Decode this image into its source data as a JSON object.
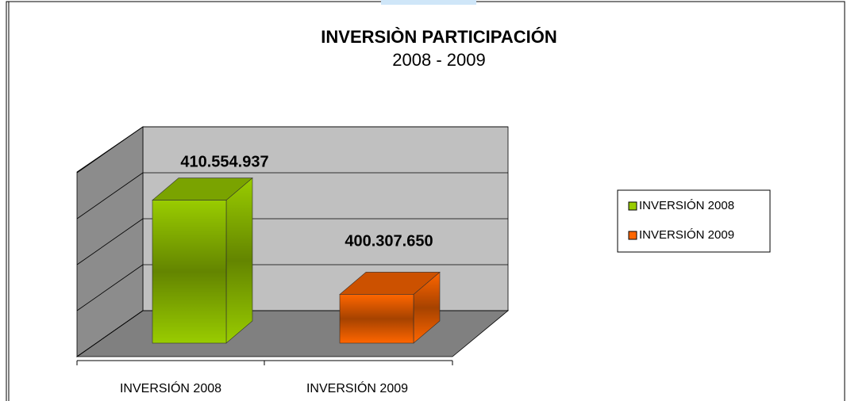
{
  "chart_data": {
    "type": "bar3d",
    "title": "INVERSIÒN PARTICIPACIÓN",
    "subtitle": "2008 - 2009",
    "categories": [
      "INVERSIÓN 2008",
      "INVERSIÓN 2009"
    ],
    "values": [
      410554937,
      400307650
    ],
    "value_labels": [
      "410.554.937",
      "400.307.650"
    ],
    "colors": [
      "#99cc00",
      "#ff6600"
    ],
    "ylim": [
      395000000,
      415000000
    ],
    "yticks": [
      395000000,
      400000000,
      405000000,
      410000000,
      415000000
    ],
    "grid": true,
    "legend": "right"
  }
}
